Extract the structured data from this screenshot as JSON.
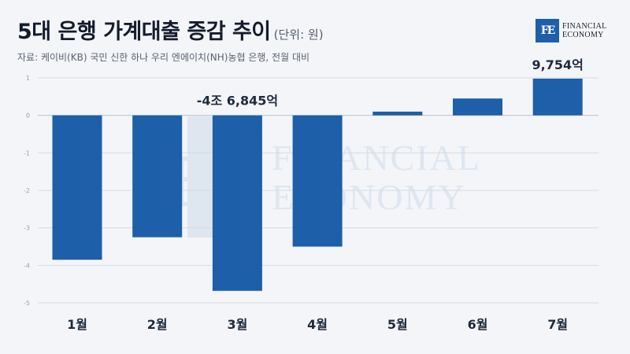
{
  "header": {
    "title": "5대 은행 가계대출 증감 추이",
    "unit": "(단위: 원)",
    "source": "자료: 케이비(KB) 국민 신한 하나 우리 엔에이치(NH)농협 은행, 전월 대비"
  },
  "logo": {
    "mark": "FE",
    "line1": "FINANCIAL",
    "line2": "ECONOMY"
  },
  "watermark": {
    "mark": "FE",
    "line1": "FINANCIAL",
    "line2": "ECONOMY"
  },
  "colors": {
    "bar": "#1d5fa8",
    "grid": "#d6dbe3",
    "zero_line": "#b9c0cc",
    "axis_text": "#9aa1ad",
    "label_text": "#1f2a3c"
  },
  "chart_data": {
    "type": "bar",
    "categories": [
      "1월",
      "2월",
      "3월",
      "4월",
      "5월",
      "6월",
      "7월"
    ],
    "values": [
      -3.85,
      -3.25,
      -4.68,
      -3.5,
      0.1,
      0.45,
      0.98
    ],
    "ylim": [
      -5,
      1
    ],
    "yticks": [
      "1",
      "0",
      "-1",
      "-2",
      "-3",
      "-4",
      "-5"
    ],
    "grid": true,
    "annotations": [
      {
        "category_index": 2,
        "text": "-4조 6,845억"
      },
      {
        "category_index": 6,
        "text": "9,754억"
      }
    ]
  }
}
